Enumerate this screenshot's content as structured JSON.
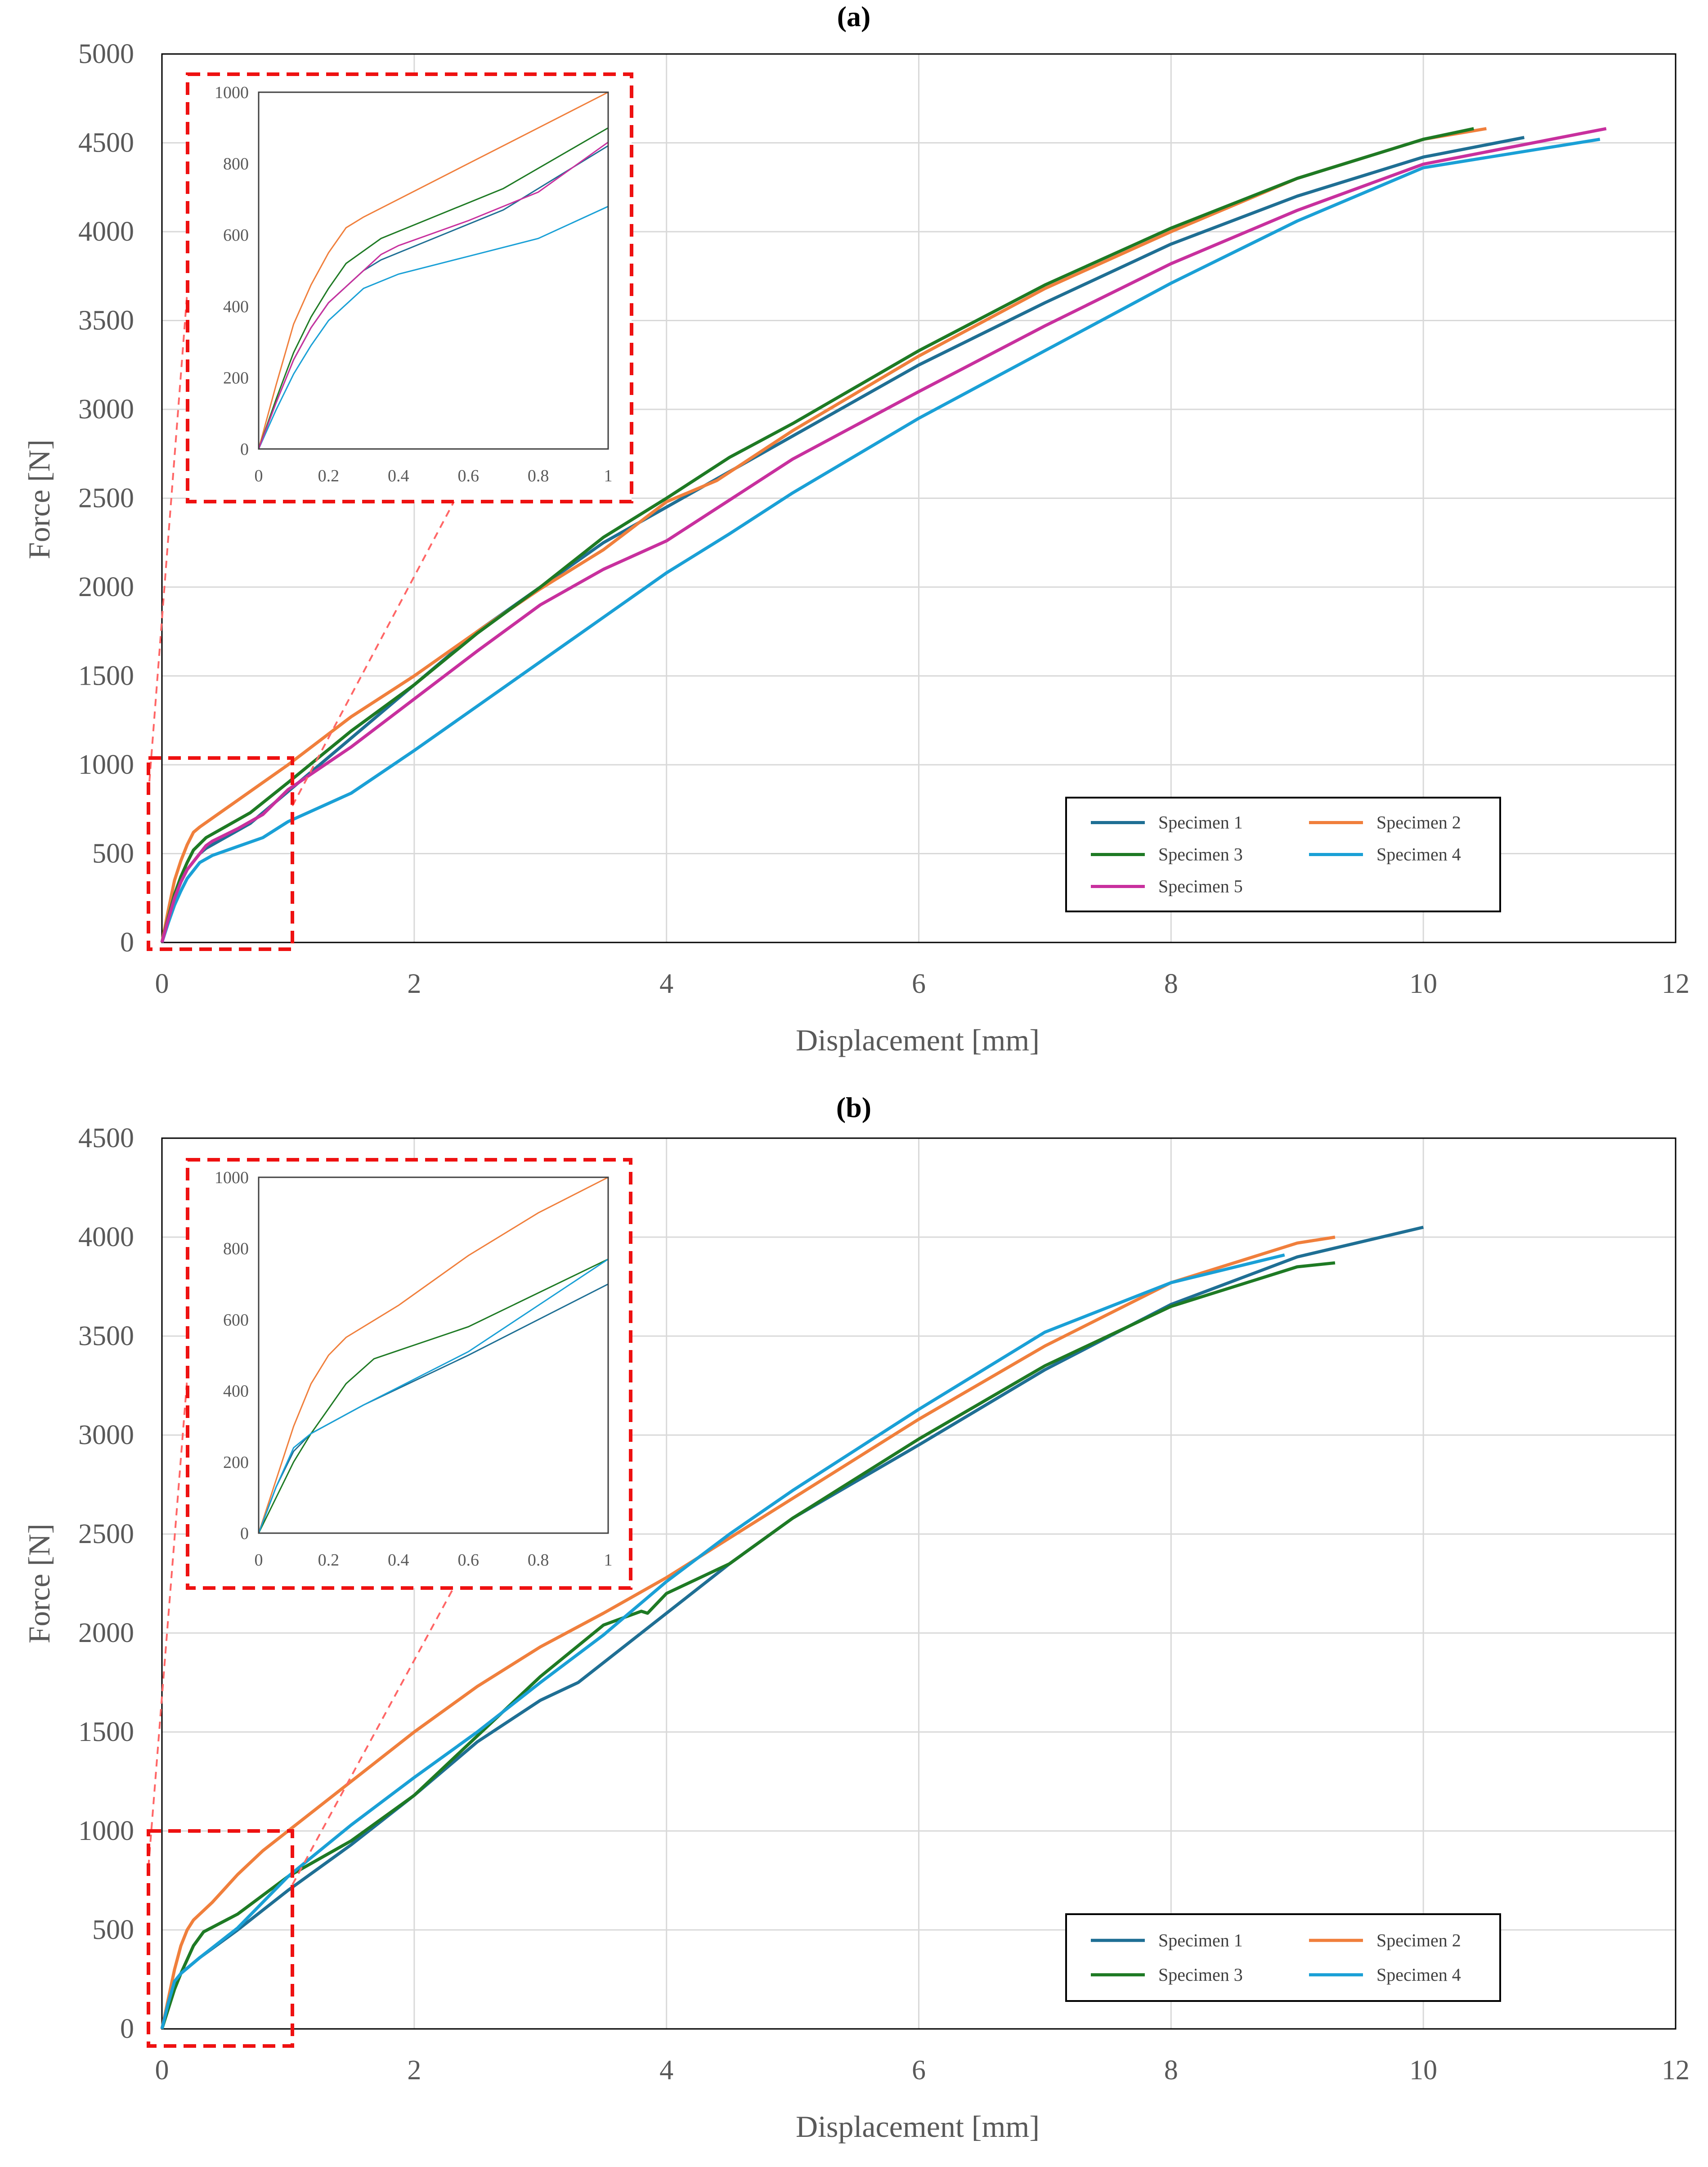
{
  "chart_data": [
    {
      "type": "line",
      "title": "(a)",
      "xlabel": "Displacement [mm]",
      "ylabel": "Force [N]",
      "xlim": [
        0,
        12
      ],
      "ylim": [
        0,
        5000
      ],
      "xticks": [
        "0",
        "2",
        "4",
        "6",
        "8",
        "10",
        "12"
      ],
      "yticks": [
        "0",
        "500",
        "1000",
        "1500",
        "2000",
        "2500",
        "3000",
        "3500",
        "4000",
        "4500",
        "5000"
      ],
      "grid": true,
      "legend": "bottom-right",
      "series": [
        {
          "name": "Specimen 1",
          "color": "#1f6f94",
          "x": [
            0,
            0.05,
            0.1,
            0.15,
            0.2,
            0.3,
            0.35,
            0.5,
            0.7,
            1.0,
            1.5,
            2,
            2.5,
            3,
            3.5,
            4,
            4.5,
            5,
            6,
            7,
            8,
            9,
            10,
            10.8
          ],
          "y": [
            0,
            130,
            250,
            340,
            410,
            500,
            530,
            590,
            670,
            850,
            1150,
            1450,
            1750,
            2000,
            2250,
            2450,
            2650,
            2850,
            3250,
            3600,
            3930,
            4200,
            4420,
            4530
          ]
        },
        {
          "name": "Specimen 2",
          "color": "#f07f3c",
          "x": [
            0,
            0.05,
            0.1,
            0.15,
            0.2,
            0.25,
            0.3,
            0.4,
            0.6,
            0.8,
            1.0,
            1.5,
            2,
            2.5,
            3,
            3.5,
            4,
            4.4,
            5,
            6,
            7,
            8,
            9,
            10,
            10.5
          ],
          "y": [
            0,
            180,
            350,
            460,
            550,
            620,
            650,
            700,
            800,
            900,
            1000,
            1270,
            1500,
            1750,
            1990,
            2210,
            2480,
            2600,
            2880,
            3300,
            3680,
            4000,
            4300,
            4520,
            4580
          ]
        },
        {
          "name": "Specimen 3",
          "color": "#1e7a24",
          "x": [
            0,
            0.05,
            0.1,
            0.15,
            0.2,
            0.25,
            0.35,
            0.5,
            0.7,
            1.0,
            1.5,
            2,
            2.5,
            3,
            3.5,
            4,
            4.5,
            5,
            6,
            7,
            8,
            9,
            10,
            10.4
          ],
          "y": [
            0,
            140,
            270,
            370,
            450,
            520,
            590,
            650,
            730,
            900,
            1190,
            1450,
            1740,
            2000,
            2280,
            2500,
            2730,
            2920,
            3330,
            3700,
            4020,
            4300,
            4520,
            4580
          ]
        },
        {
          "name": "Specimen 4",
          "color": "#1aa0d6",
          "x": [
            0,
            0.05,
            0.1,
            0.15,
            0.2,
            0.3,
            0.4,
            0.6,
            0.8,
            1.0,
            1.5,
            2,
            2.5,
            3,
            3.5,
            4,
            4.5,
            5,
            6,
            7,
            8,
            9,
            10,
            11.4
          ],
          "y": [
            0,
            110,
            210,
            290,
            360,
            450,
            490,
            540,
            590,
            680,
            840,
            1080,
            1330,
            1580,
            1830,
            2080,
            2300,
            2530,
            2950,
            3330,
            3710,
            4060,
            4360,
            4520
          ]
        },
        {
          "name": "Specimen 5",
          "color": "#c8309e",
          "x": [
            0,
            0.05,
            0.1,
            0.15,
            0.2,
            0.3,
            0.35,
            0.4,
            0.6,
            0.8,
            1.0,
            1.5,
            2,
            2.5,
            3,
            3.5,
            4,
            4.5,
            5,
            6,
            7,
            8,
            9,
            10,
            11.45
          ],
          "y": [
            0,
            130,
            250,
            340,
            410,
            500,
            545,
            570,
            640,
            720,
            860,
            1100,
            1370,
            1640,
            1900,
            2100,
            2260,
            2490,
            2720,
            3100,
            3470,
            3820,
            4120,
            4380,
            4580
          ]
        }
      ],
      "inset": {
        "xlim": [
          0,
          1
        ],
        "ylim": [
          0,
          1000
        ],
        "xticks": [
          "0",
          "0.2",
          "0.4",
          "0.6",
          "0.8",
          "1"
        ],
        "yticks": [
          "0",
          "200",
          "400",
          "600",
          "800",
          "1000"
        ]
      }
    },
    {
      "type": "line",
      "title": "(b)",
      "xlabel": "Displacement [mm]",
      "ylabel": "Force [N]",
      "xlim": [
        0,
        12
      ],
      "ylim": [
        0,
        4500
      ],
      "xticks": [
        "0",
        "2",
        "4",
        "6",
        "8",
        "10",
        "12"
      ],
      "yticks": [
        "0",
        "500",
        "1000",
        "1500",
        "2000",
        "2500",
        "3000",
        "3500",
        "4000",
        "4500"
      ],
      "grid": true,
      "legend": "bottom-right",
      "series": [
        {
          "name": "Specimen 1",
          "color": "#1f6f94",
          "x": [
            0,
            0.05,
            0.1,
            0.15,
            0.3,
            0.6,
            1.0,
            1.5,
            2,
            2.5,
            3,
            3.3,
            4,
            4.5,
            5,
            6,
            7,
            8,
            9,
            10
          ],
          "y": [
            0,
            130,
            230,
            280,
            360,
            500,
            700,
            930,
            1180,
            1450,
            1660,
            1750,
            2100,
            2350,
            2580,
            2950,
            3330,
            3660,
            3900,
            4050
          ]
        },
        {
          "name": "Specimen 2",
          "color": "#f07f3c",
          "x": [
            0,
            0.05,
            0.1,
            0.15,
            0.2,
            0.25,
            0.4,
            0.6,
            0.8,
            1.0,
            1.5,
            2,
            2.5,
            3,
            3.5,
            4,
            4.5,
            5,
            6,
            7,
            8,
            9,
            9.3
          ],
          "y": [
            0,
            150,
            300,
            420,
            500,
            550,
            640,
            780,
            900,
            1000,
            1250,
            1500,
            1730,
            1930,
            2100,
            2280,
            2480,
            2680,
            3080,
            3450,
            3770,
            3970,
            4000
          ]
        },
        {
          "name": "Specimen 3",
          "color": "#1e7a24",
          "x": [
            0,
            0.05,
            0.1,
            0.15,
            0.2,
            0.25,
            0.33,
            0.6,
            1.0,
            1.5,
            2,
            2.5,
            3,
            3.5,
            3.8,
            3.85,
            4,
            4.5,
            5,
            6,
            7,
            8,
            9,
            9.3
          ],
          "y": [
            0,
            100,
            200,
            280,
            350,
            420,
            490,
            580,
            770,
            950,
            1180,
            1480,
            1780,
            2040,
            2110,
            2100,
            2200,
            2350,
            2580,
            2980,
            3350,
            3650,
            3850,
            3870
          ]
        },
        {
          "name": "Specimen 4",
          "color": "#1aa0d6",
          "x": [
            0,
            0.05,
            0.1,
            0.15,
            0.3,
            0.6,
            1.0,
            1.5,
            2,
            2.5,
            3,
            3.5,
            4,
            4.5,
            5,
            6,
            7,
            8,
            8.9
          ],
          "y": [
            0,
            130,
            240,
            280,
            360,
            510,
            770,
            1030,
            1270,
            1500,
            1750,
            1990,
            2260,
            2500,
            2720,
            3130,
            3520,
            3770,
            3910
          ]
        }
      ],
      "inset": {
        "xlim": [
          0,
          1
        ],
        "ylim": [
          0,
          1000
        ],
        "xticks": [
          "0",
          "0.2",
          "0.4",
          "0.6",
          "0.8",
          "1"
        ],
        "yticks": [
          "0",
          "200",
          "400",
          "600",
          "800",
          "1000"
        ]
      }
    }
  ]
}
